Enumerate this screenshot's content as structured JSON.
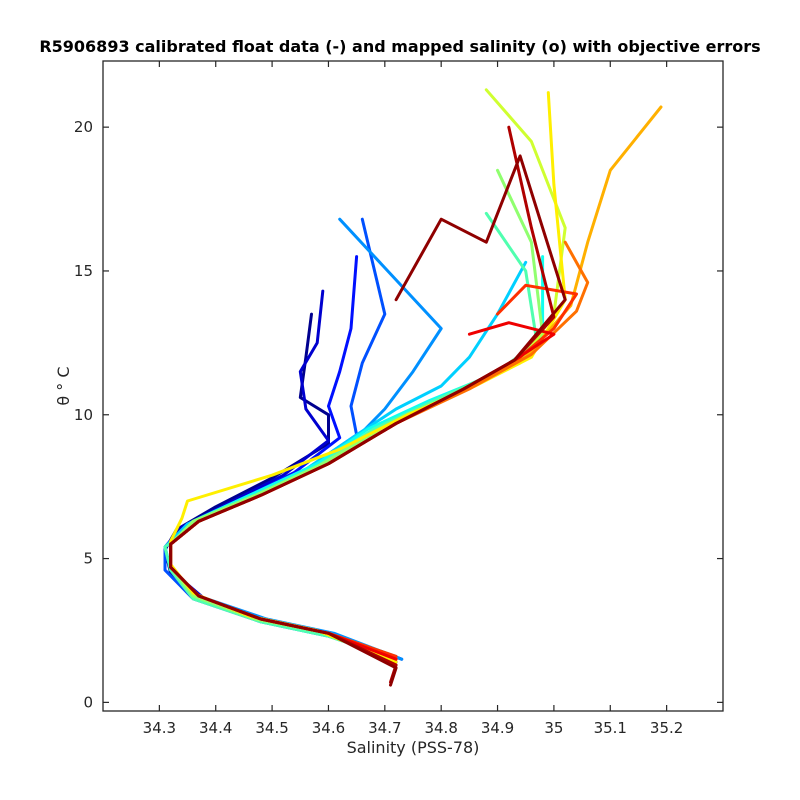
{
  "chart_data": {
    "type": "line",
    "title": "R5906893 calibrated float data (-) and mapped salinity (o) with objective errors",
    "xlabel": "Salinity (PSS-78)",
    "ylabel": "θ ° C",
    "xlim": [
      34.2,
      35.3
    ],
    "ylim": [
      -0.3,
      22.3
    ],
    "x_ticks": [
      34.3,
      34.4,
      34.5,
      34.6,
      34.7,
      34.8,
      34.9,
      35.0,
      35.1,
      35.2
    ],
    "x_tick_labels": [
      "34.3",
      "34.4",
      "34.5",
      "34.6",
      "34.7",
      "34.8",
      "34.9",
      "35",
      "35.1",
      "35.2"
    ],
    "y_ticks": [
      0,
      5,
      10,
      15,
      20
    ],
    "y_tick_labels": [
      "0",
      "5",
      "10",
      "15",
      "20"
    ],
    "grid": false,
    "colormap": "jet",
    "series": [
      {
        "color": "#00008f",
        "points": [
          [
            34.72,
            1.5
          ],
          [
            34.62,
            2.3
          ],
          [
            34.5,
            2.8
          ],
          [
            34.38,
            3.5
          ],
          [
            34.32,
            4.5
          ],
          [
            34.31,
            5.3
          ],
          [
            34.33,
            6.0
          ],
          [
            34.4,
            6.8
          ],
          [
            34.5,
            7.8
          ],
          [
            34.6,
            9.0
          ],
          [
            34.6,
            10.0
          ],
          [
            34.55,
            10.6
          ],
          [
            34.56,
            12.0
          ],
          [
            34.57,
            13.5
          ]
        ]
      },
      {
        "color": "#0000cf",
        "points": [
          [
            34.73,
            1.5
          ],
          [
            34.62,
            2.3
          ],
          [
            34.5,
            2.8
          ],
          [
            34.38,
            3.6
          ],
          [
            34.32,
            4.6
          ],
          [
            34.31,
            5.4
          ],
          [
            34.34,
            6.1
          ],
          [
            34.42,
            6.9
          ],
          [
            34.52,
            7.9
          ],
          [
            34.6,
            9.1
          ],
          [
            34.56,
            10.2
          ],
          [
            34.55,
            11.5
          ],
          [
            34.58,
            12.5
          ],
          [
            34.59,
            14.3
          ]
        ]
      },
      {
        "color": "#0010ff",
        "points": [
          [
            34.72,
            1.4
          ],
          [
            34.6,
            2.4
          ],
          [
            34.48,
            2.9
          ],
          [
            34.37,
            3.7
          ],
          [
            34.32,
            4.7
          ],
          [
            34.32,
            5.5
          ],
          [
            34.35,
            6.2
          ],
          [
            34.44,
            7.0
          ],
          [
            34.54,
            8.0
          ],
          [
            34.62,
            9.2
          ],
          [
            34.6,
            10.3
          ],
          [
            34.62,
            11.5
          ],
          [
            34.64,
            13.0
          ],
          [
            34.65,
            15.5
          ]
        ]
      },
      {
        "color": "#0050ff",
        "points": [
          [
            34.72,
            1.6
          ],
          [
            34.6,
            2.3
          ],
          [
            34.48,
            2.8
          ],
          [
            34.36,
            3.6
          ],
          [
            34.31,
            4.6
          ],
          [
            34.31,
            5.4
          ],
          [
            34.35,
            6.2
          ],
          [
            34.45,
            7.1
          ],
          [
            34.56,
            8.1
          ],
          [
            34.65,
            9.3
          ],
          [
            34.64,
            10.3
          ],
          [
            34.66,
            11.8
          ],
          [
            34.7,
            13.5
          ],
          [
            34.66,
            16.8
          ]
        ]
      },
      {
        "color": "#0090ff",
        "points": [
          [
            34.73,
            1.5
          ],
          [
            34.61,
            2.4
          ],
          [
            34.49,
            2.9
          ],
          [
            34.37,
            3.7
          ],
          [
            34.32,
            4.7
          ],
          [
            34.32,
            5.5
          ],
          [
            34.36,
            6.3
          ],
          [
            34.46,
            7.2
          ],
          [
            34.57,
            8.2
          ],
          [
            34.66,
            9.4
          ],
          [
            34.7,
            10.2
          ],
          [
            34.75,
            11.5
          ],
          [
            34.8,
            13.0
          ],
          [
            34.62,
            16.8
          ]
        ]
      },
      {
        "color": "#00d0ff",
        "points": [
          [
            34.72,
            1.5
          ],
          [
            34.6,
            2.3
          ],
          [
            34.48,
            2.8
          ],
          [
            34.37,
            3.6
          ],
          [
            34.32,
            4.6
          ],
          [
            34.31,
            5.4
          ],
          [
            34.35,
            6.2
          ],
          [
            34.45,
            7.1
          ],
          [
            34.56,
            8.1
          ],
          [
            34.65,
            9.3
          ],
          [
            34.72,
            10.2
          ],
          [
            34.8,
            11.0
          ],
          [
            34.85,
            12.0
          ],
          [
            34.9,
            13.5
          ],
          [
            34.95,
            15.3
          ]
        ]
      },
      {
        "color": "#10ffef",
        "points": [
          [
            34.72,
            1.6
          ],
          [
            34.6,
            2.4
          ],
          [
            34.48,
            2.9
          ],
          [
            34.37,
            3.7
          ],
          [
            34.32,
            4.7
          ],
          [
            34.32,
            5.5
          ],
          [
            34.36,
            6.3
          ],
          [
            34.46,
            7.2
          ],
          [
            34.58,
            8.3
          ],
          [
            34.67,
            9.5
          ],
          [
            34.78,
            10.5
          ],
          [
            34.88,
            11.3
          ],
          [
            34.95,
            12.0
          ],
          [
            34.98,
            13.0
          ],
          [
            34.98,
            15.5
          ]
        ]
      },
      {
        "color": "#50ffaf",
        "points": [
          [
            34.72,
            1.5
          ],
          [
            34.6,
            2.3
          ],
          [
            34.48,
            2.8
          ],
          [
            34.36,
            3.6
          ],
          [
            34.32,
            4.6
          ],
          [
            34.31,
            5.4
          ],
          [
            34.36,
            6.2
          ],
          [
            34.46,
            7.1
          ],
          [
            34.58,
            8.2
          ],
          [
            34.68,
            9.5
          ],
          [
            34.8,
            10.6
          ],
          [
            34.9,
            11.5
          ],
          [
            34.97,
            12.5
          ],
          [
            34.95,
            15.0
          ],
          [
            34.88,
            17.0
          ]
        ]
      },
      {
        "color": "#90ff6f",
        "points": [
          [
            34.71,
            1.6
          ],
          [
            34.6,
            2.4
          ],
          [
            34.47,
            2.9
          ],
          [
            34.36,
            3.7
          ],
          [
            34.32,
            4.7
          ],
          [
            34.32,
            5.5
          ],
          [
            34.36,
            6.3
          ],
          [
            34.47,
            7.2
          ],
          [
            34.59,
            8.3
          ],
          [
            34.7,
            9.6
          ],
          [
            34.82,
            10.7
          ],
          [
            34.92,
            11.6
          ],
          [
            34.98,
            12.8
          ],
          [
            34.96,
            16.0
          ],
          [
            34.9,
            18.5
          ]
        ]
      },
      {
        "color": "#cfff30",
        "points": [
          [
            34.72,
            1.5
          ],
          [
            34.6,
            2.4
          ],
          [
            34.48,
            2.9
          ],
          [
            34.37,
            3.7
          ],
          [
            34.32,
            4.7
          ],
          [
            34.32,
            5.5
          ],
          [
            34.37,
            6.3
          ],
          [
            34.48,
            7.2
          ],
          [
            34.6,
            8.3
          ],
          [
            34.71,
            9.6
          ],
          [
            34.83,
            10.8
          ],
          [
            34.94,
            11.8
          ],
          [
            35.0,
            13.5
          ],
          [
            35.02,
            16.5
          ],
          [
            34.96,
            19.5
          ],
          [
            34.88,
            21.3
          ]
        ]
      },
      {
        "color": "#ffef00",
        "points": [
          [
            34.72,
            1.4
          ],
          [
            34.58,
            2.5
          ],
          [
            34.46,
            3.0
          ],
          [
            34.36,
            3.8
          ],
          [
            34.32,
            4.8
          ],
          [
            34.32,
            5.6
          ],
          [
            34.34,
            6.4
          ],
          [
            34.35,
            7.0
          ],
          [
            34.5,
            7.9
          ],
          [
            34.62,
            8.8
          ],
          [
            34.74,
            10.0
          ],
          [
            34.86,
            11.0
          ],
          [
            34.96,
            12.0
          ],
          [
            35.02,
            14.0
          ],
          [
            35.0,
            18.0
          ],
          [
            34.99,
            21.2
          ]
        ]
      },
      {
        "color": "#ffb000",
        "points": [
          [
            34.72,
            1.5
          ],
          [
            34.6,
            2.4
          ],
          [
            34.48,
            2.9
          ],
          [
            34.37,
            3.7
          ],
          [
            34.32,
            4.7
          ],
          [
            34.32,
            5.5
          ],
          [
            34.37,
            6.3
          ],
          [
            34.48,
            7.2
          ],
          [
            34.6,
            8.3
          ],
          [
            34.72,
            9.7
          ],
          [
            34.84,
            10.9
          ],
          [
            34.95,
            12.0
          ],
          [
            35.03,
            13.8
          ],
          [
            35.06,
            16.0
          ],
          [
            35.1,
            18.5
          ],
          [
            35.19,
            20.7
          ]
        ]
      },
      {
        "color": "#ff7000",
        "points": [
          [
            34.72,
            1.5
          ],
          [
            34.6,
            2.4
          ],
          [
            34.48,
            2.9
          ],
          [
            34.37,
            3.7
          ],
          [
            34.32,
            4.7
          ],
          [
            34.32,
            5.5
          ],
          [
            34.37,
            6.3
          ],
          [
            34.48,
            7.2
          ],
          [
            34.6,
            8.3
          ],
          [
            34.72,
            9.7
          ],
          [
            34.85,
            10.9
          ],
          [
            34.96,
            12.1
          ],
          [
            35.04,
            13.6
          ],
          [
            35.06,
            14.6
          ],
          [
            35.02,
            16.0
          ]
        ]
      },
      {
        "color": "#ff3000",
        "points": [
          [
            34.72,
            1.6
          ],
          [
            34.6,
            2.4
          ],
          [
            34.48,
            2.9
          ],
          [
            34.37,
            3.7
          ],
          [
            34.32,
            4.7
          ],
          [
            34.32,
            5.5
          ],
          [
            34.37,
            6.3
          ],
          [
            34.48,
            7.2
          ],
          [
            34.6,
            8.3
          ],
          [
            34.72,
            9.7
          ],
          [
            34.84,
            10.9
          ],
          [
            34.94,
            12.0
          ],
          [
            35.0,
            13.0
          ],
          [
            35.04,
            14.2
          ],
          [
            34.95,
            14.5
          ],
          [
            34.9,
            13.5
          ]
        ]
      },
      {
        "color": "#ef0000",
        "points": [
          [
            34.72,
            1.5
          ],
          [
            34.6,
            2.4
          ],
          [
            34.48,
            2.9
          ],
          [
            34.37,
            3.7
          ],
          [
            34.32,
            4.7
          ],
          [
            34.32,
            5.5
          ],
          [
            34.37,
            6.3
          ],
          [
            34.48,
            7.2
          ],
          [
            34.6,
            8.3
          ],
          [
            34.72,
            9.7
          ],
          [
            34.84,
            10.9
          ],
          [
            34.93,
            11.9
          ],
          [
            35.0,
            12.8
          ],
          [
            34.92,
            13.2
          ],
          [
            34.85,
            12.8
          ]
        ]
      },
      {
        "color": "#af0000",
        "points": [
          [
            34.71,
            0.7
          ],
          [
            34.72,
            1.3
          ],
          [
            34.6,
            2.4
          ],
          [
            34.48,
            2.9
          ],
          [
            34.37,
            3.7
          ],
          [
            34.32,
            4.7
          ],
          [
            34.32,
            5.5
          ],
          [
            34.37,
            6.3
          ],
          [
            34.48,
            7.2
          ],
          [
            34.6,
            8.3
          ],
          [
            34.72,
            9.7
          ],
          [
            34.84,
            10.9
          ],
          [
            34.93,
            11.9
          ],
          [
            35.0,
            13.4
          ],
          [
            34.96,
            16.5
          ],
          [
            34.92,
            20.0
          ]
        ]
      },
      {
        "color": "#8f0000",
        "points": [
          [
            34.71,
            0.6
          ],
          [
            34.72,
            1.2
          ],
          [
            34.6,
            2.4
          ],
          [
            34.48,
            2.9
          ],
          [
            34.37,
            3.7
          ],
          [
            34.32,
            4.7
          ],
          [
            34.32,
            5.5
          ],
          [
            34.37,
            6.3
          ],
          [
            34.48,
            7.2
          ],
          [
            34.6,
            8.3
          ],
          [
            34.72,
            9.7
          ],
          [
            34.84,
            10.9
          ],
          [
            34.93,
            11.9
          ],
          [
            35.02,
            14.0
          ],
          [
            34.98,
            16.5
          ],
          [
            34.94,
            19.0
          ],
          [
            34.88,
            16.0
          ],
          [
            34.8,
            16.8
          ],
          [
            34.72,
            14.0
          ]
        ]
      }
    ]
  }
}
